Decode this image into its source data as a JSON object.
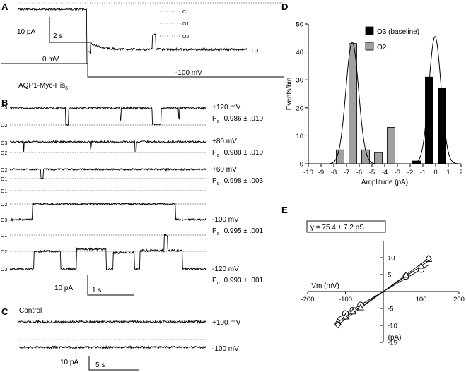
{
  "panels": {
    "a": "A",
    "b": "B",
    "c": "C",
    "d": "D",
    "e": "E"
  },
  "panel_a": {
    "scale_current": "10 pA",
    "scale_time": "2 s",
    "level_c": "C",
    "level_o1": "O1",
    "level_o2": "O2",
    "level_o3": "O3",
    "v_hold": "0 mV",
    "v_step": "-100 mV"
  },
  "panel_b": {
    "title_main": "AQP1-Myc-His",
    "title_sub": "6",
    "traces": [
      {
        "top": "O3",
        "bottom": "O2",
        "voltage": "+120 mV",
        "po": "0.986 ± .010"
      },
      {
        "top": "O3",
        "bottom": "O2",
        "voltage": "+80 mV",
        "po": "0.988 ± .010"
      },
      {
        "top": "O2",
        "bottom": "O1",
        "voltage": "+60 mV",
        "po": "0.998 ± .003"
      },
      {
        "l1": "O1",
        "l2": "O2",
        "l3": "O3",
        "voltage": "-100 mV",
        "po": "0.995 ± .001"
      },
      {
        "l1": "O1",
        "l2": "O2",
        "l3": "O3",
        "voltage": "-120 mV",
        "po": "0.993 ± .001"
      }
    ],
    "po_main": "P",
    "po_sub": "o",
    "scale_current": "10 pA",
    "scale_time": "1 s"
  },
  "panel_c": {
    "title": "Control",
    "v1": "+100 mV",
    "v2": "-100 mV",
    "scale_current": "10 pA",
    "scale_time": "5 s"
  },
  "panel_d": {
    "chart_data": {
      "type": "bar",
      "xlabel": "Amplitude (pA)",
      "ylabel": "Events/bin",
      "xlim": [
        -10,
        2
      ],
      "ylim": [
        0,
        50
      ],
      "xticks": [
        -10,
        -9,
        -8,
        -7,
        -6,
        -5,
        -4,
        -3,
        -2,
        -1,
        0,
        1,
        2
      ],
      "yticks": [
        0,
        10,
        20,
        30,
        40,
        50
      ],
      "legend_position": "top-right",
      "series": [
        {
          "name": "O3 (baseline)",
          "color": "#000000",
          "bins": [
            {
              "x": -1.5,
              "value": 1
            },
            {
              "x": -0.5,
              "value": 31
            },
            {
              "x": 0.5,
              "value": 27
            }
          ],
          "gaussian": {
            "mean": -0.05,
            "sd": 0.48,
            "peak": 45.5
          }
        },
        {
          "name": "O2",
          "color": "#a0a0a0",
          "bins": [
            {
              "x": -7.5,
              "value": 5
            },
            {
              "x": -6.5,
              "value": 43
            },
            {
              "x": -5.5,
              "value": 5
            },
            {
              "x": -4.5,
              "value": 4
            },
            {
              "x": -3.5,
              "value": 13
            }
          ],
          "gaussian": {
            "mean": -6.55,
            "sd": 0.5,
            "peak": 43.5
          }
        }
      ]
    }
  },
  "panel_e": {
    "chart_data": {
      "type": "scatter",
      "xlabel": "Vm (mV)",
      "ylabel": "I (pA)",
      "xlim": [
        -200,
        200
      ],
      "ylim": [
        -15,
        15
      ],
      "xticks": [
        -200,
        -100,
        0,
        100,
        200
      ],
      "yticks": [
        -15,
        -10,
        -5,
        5,
        10
      ],
      "annotation": "γ = 75.4 ± 7.2 pS",
      "series": [
        {
          "marker": "circle",
          "points": [
            [
              -100,
              -6.5
            ],
            [
              -80,
              -5.5
            ],
            [
              -60,
              -4
            ],
            [
              60,
              4.5
            ],
            [
              100,
              6.5
            ]
          ]
        },
        {
          "marker": "triangle",
          "points": [
            [
              -120,
              -9
            ],
            [
              -100,
              -7.5
            ],
            [
              -80,
              -6
            ],
            [
              -60,
              -4.8
            ],
            [
              60,
              4.8
            ],
            [
              100,
              7.5
            ],
            [
              120,
              9.5
            ]
          ]
        },
        {
          "marker": "diamond",
          "points": [
            [
              -120,
              -9.8
            ],
            [
              120,
              9.8
            ]
          ]
        }
      ],
      "fit_lines": [
        {
          "slope": 0.0654
        },
        {
          "slope": 0.0754
        },
        {
          "slope": 0.0817
        }
      ]
    }
  }
}
